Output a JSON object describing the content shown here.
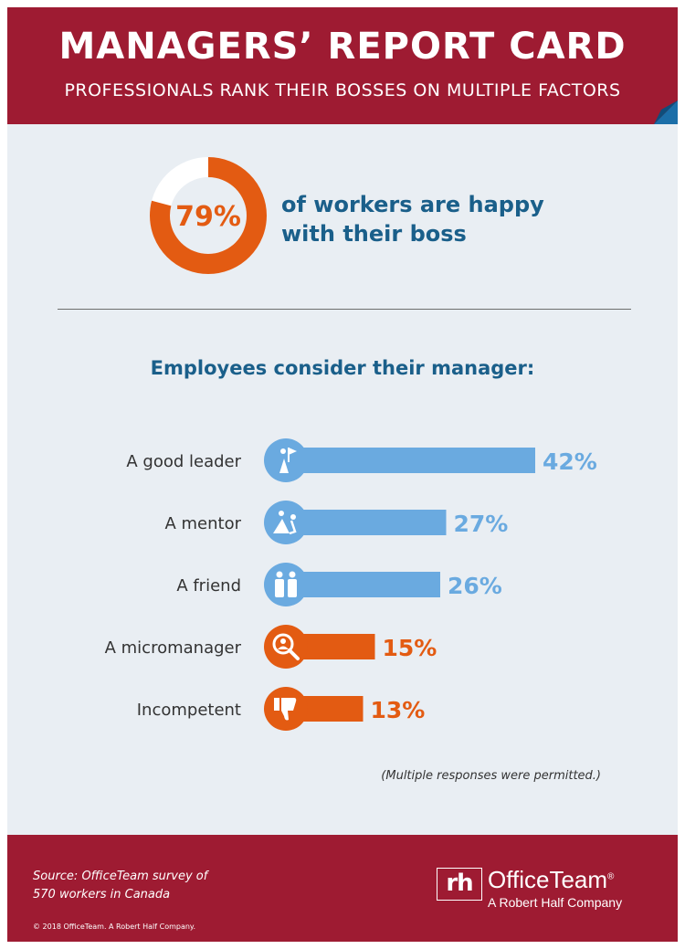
{
  "header": {
    "title": "MANAGERS’ REPORT CARD",
    "subtitle": "PROFESSIONALS RANK THEIR BOSSES ON MULTIPLE FACTORS"
  },
  "highlight": {
    "percent": 79,
    "label": "79%",
    "line1": "of workers are happy",
    "line2": "with their boss"
  },
  "section_title": "Employees consider their manager:",
  "note": "(Multiple responses were permitted.)",
  "footer": {
    "source_line1": "Source: OfficeTeam survey of",
    "source_line2": "570 workers in Canada",
    "copyright": "© 2018 OfficeTeam. A Robert Half Company.",
    "logo_mark": "rh",
    "logo_name": "OfficeTeam",
    "logo_reg": "®",
    "logo_tagline": "A Robert Half Company"
  },
  "colors": {
    "brand": "#9e1b32",
    "background": "#e9eef3",
    "blue_bar": "#6aaae0",
    "orange_bar": "#e35b12",
    "title_blue": "#1a5f8a"
  },
  "chart_data": {
    "type": "bar",
    "orientation": "horizontal",
    "title": "Employees consider their manager:",
    "categories": [
      "A good leader",
      "A mentor",
      "A friend",
      "A micromanager",
      "Incompetent"
    ],
    "values": [
      42,
      27,
      26,
      15,
      13
    ],
    "value_labels": [
      "42%",
      "27%",
      "26%",
      "15%",
      "13%"
    ],
    "icons": [
      "summit-flag-icon",
      "mentor-climb-icon",
      "friends-icon",
      "magnifier-person-icon",
      "thumbs-down-icon"
    ],
    "bar_colors": [
      "#6aaae0",
      "#6aaae0",
      "#6aaae0",
      "#e35b12",
      "#e35b12"
    ],
    "unit": "%"
  }
}
